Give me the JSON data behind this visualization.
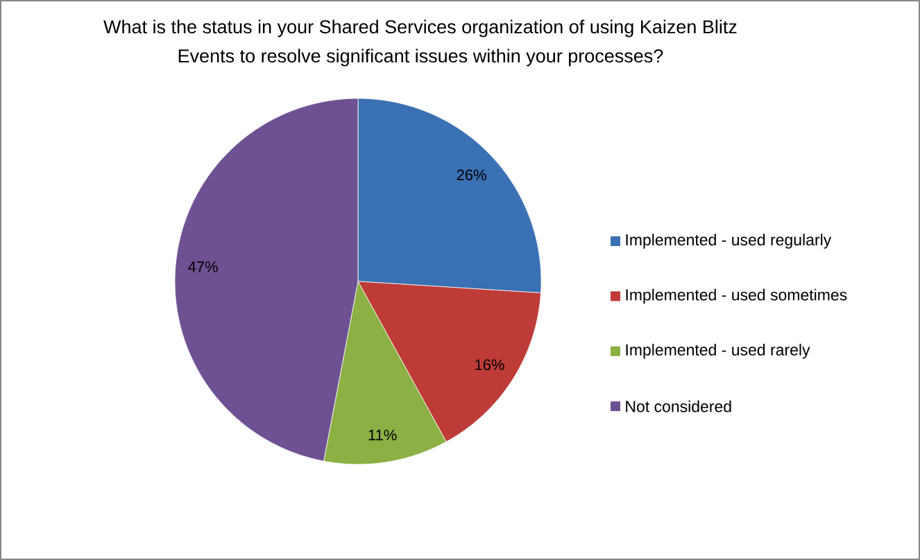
{
  "chart_data": {
    "type": "pie",
    "title": "What is the status in your Shared Services organization of using Kaizen Blitz Events to resolve significant issues within your processes?",
    "categories": [
      "Implemented - used regularly",
      "Implemented - used sometimes",
      "Implemented - used rarely",
      "Not considered"
    ],
    "values": [
      26,
      16,
      11,
      47
    ],
    "colors": [
      "#3a70b4",
      "#be3b37",
      "#8cb043",
      "#6e5192"
    ],
    "value_labels": [
      "26%",
      "16%",
      "11%",
      "47%"
    ],
    "legend": "right"
  }
}
